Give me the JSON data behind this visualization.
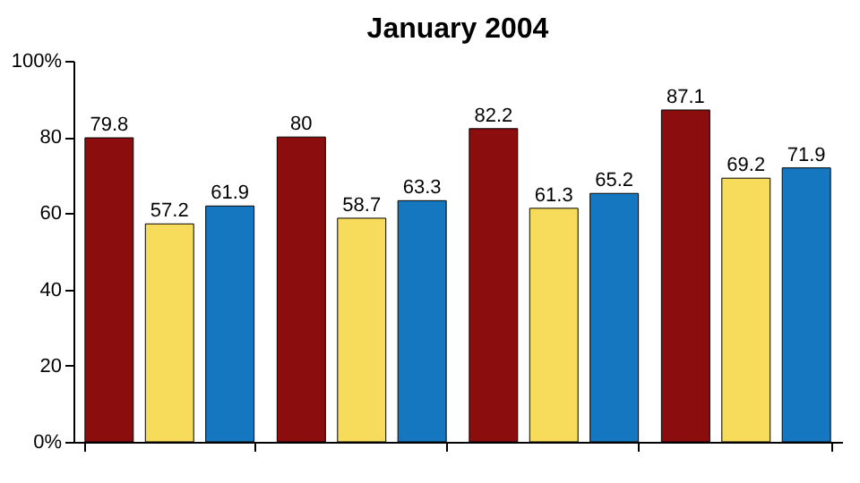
{
  "chart_data": {
    "type": "bar",
    "title": "January 2004",
    "categories": [
      null,
      null,
      null,
      null
    ],
    "series": [
      {
        "color": "#8b0d0d",
        "values": [
          79.8,
          80,
          82.2,
          87.1
        ]
      },
      {
        "color": "#f7dc5c",
        "values": [
          57.2,
          58.7,
          61.3,
          69.2
        ]
      },
      {
        "color": "#1577bf",
        "values": [
          61.9,
          63.3,
          65.2,
          71.9
        ]
      }
    ],
    "ylim": [
      0,
      100
    ],
    "yticks": [
      {
        "value": 0,
        "label": "0%"
      },
      20,
      40,
      60,
      80,
      {
        "value": 100,
        "label": "100%"
      }
    ],
    "data_labels": true,
    "grid": false
  }
}
